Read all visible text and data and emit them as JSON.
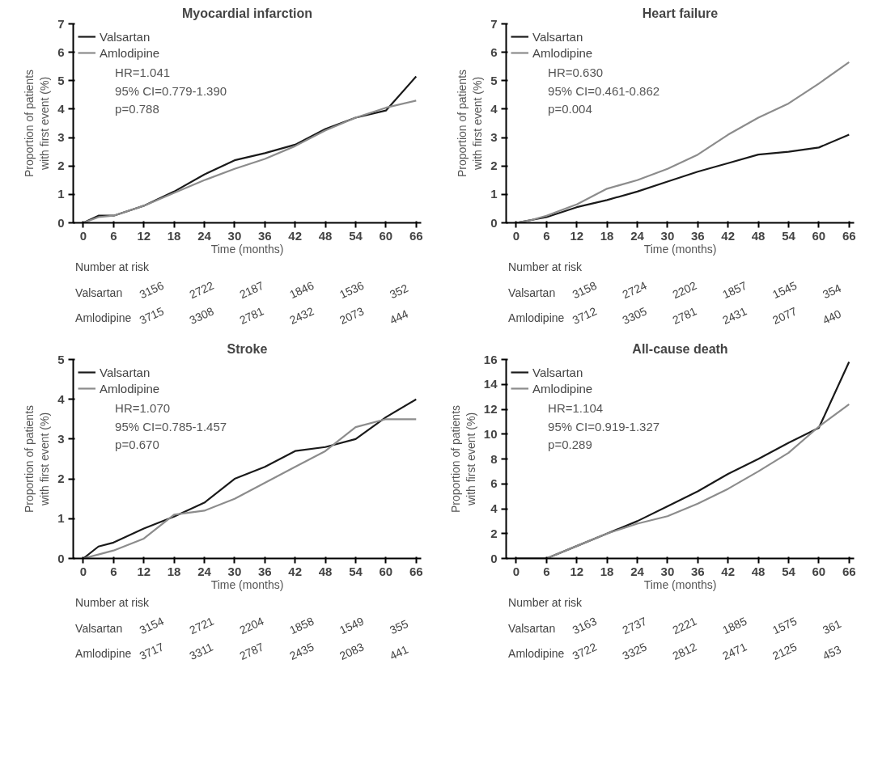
{
  "chart_data": [
    {
      "type": "line",
      "title": "Myocardial infarction",
      "xlabel": "Time (months)",
      "ylabel": "Proportion of patients\nwith first event (%)",
      "x": [
        0,
        3,
        6,
        12,
        18,
        24,
        30,
        36,
        42,
        48,
        54,
        60,
        66
      ],
      "xlim": [
        -2,
        67
      ],
      "ylim": [
        0,
        7
      ],
      "xticks": [
        0,
        6,
        12,
        18,
        24,
        30,
        36,
        42,
        48,
        54,
        60,
        66
      ],
      "yticks": [
        0,
        1,
        2,
        3,
        4,
        5,
        6,
        7
      ],
      "legend": "top left",
      "series": [
        {
          "name": "Valsartan",
          "color": "#1a1a1a",
          "values": [
            0,
            0.25,
            0.25,
            0.6,
            1.1,
            1.7,
            2.2,
            2.45,
            2.75,
            3.3,
            3.7,
            3.95,
            5.15
          ]
        },
        {
          "name": "Amlodipine",
          "color": "#8c8c8c",
          "values": [
            0,
            0.2,
            0.25,
            0.6,
            1.05,
            1.5,
            1.9,
            2.25,
            2.7,
            3.25,
            3.7,
            4.05,
            4.3
          ]
        }
      ],
      "annotations": [
        "HR=1.041",
        "95% CI=0.779-1.390",
        "p=0.788",
        "Number at risk",
        "Valsartan",
        "Amlodipine",
        "3156",
        "2722",
        "2187",
        "1846",
        "1536",
        "352",
        "3715",
        "3308",
        "2781",
        "2432",
        "2073",
        "444"
      ]
    },
    {
      "type": "line",
      "title": "Heart failure",
      "xlabel": "Time (months)",
      "ylabel": "Proportion of patients\nwith first event (%)",
      "x": [
        0,
        3,
        6,
        12,
        18,
        24,
        30,
        36,
        42,
        48,
        54,
        60,
        66
      ],
      "xlim": [
        -2,
        67
      ],
      "ylim": [
        0,
        7
      ],
      "xticks": [
        0,
        6,
        12,
        18,
        24,
        30,
        36,
        42,
        48,
        54,
        60,
        66
      ],
      "yticks": [
        0,
        1,
        2,
        3,
        4,
        5,
        6,
        7
      ],
      "legend": "top left",
      "series": [
        {
          "name": "Valsartan",
          "color": "#1a1a1a",
          "values": [
            0,
            0.1,
            0.2,
            0.55,
            0.8,
            1.1,
            1.45,
            1.8,
            2.1,
            2.4,
            2.5,
            2.65,
            3.1
          ]
        },
        {
          "name": "Amlodipine",
          "color": "#8c8c8c",
          "values": [
            0,
            0.1,
            0.25,
            0.65,
            1.2,
            1.5,
            1.9,
            2.4,
            3.1,
            3.7,
            4.2,
            4.9,
            5.65
          ]
        }
      ],
      "annotations": [
        "HR=0.630",
        "95% CI=0.461-0.862",
        "p=0.004",
        "Number at risk",
        "Valsartan",
        "Amlodipine",
        "3158",
        "2724",
        "2202",
        "1857",
        "1545",
        "354",
        "3712",
        "3305",
        "2781",
        "2431",
        "2077",
        "440"
      ]
    },
    {
      "type": "line",
      "title": "Stroke",
      "xlabel": "Time (months)",
      "ylabel": "Proportion of patients\nwith first event (%)",
      "x": [
        0,
        3,
        6,
        12,
        18,
        24,
        30,
        36,
        42,
        48,
        54,
        60,
        66
      ],
      "xlim": [
        -2,
        67
      ],
      "ylim": [
        0,
        5
      ],
      "xticks": [
        0,
        6,
        12,
        18,
        24,
        30,
        36,
        42,
        48,
        54,
        60,
        66
      ],
      "yticks": [
        0,
        1,
        2,
        3,
        4,
        5
      ],
      "legend": "top left",
      "series": [
        {
          "name": "Valsartan",
          "color": "#1a1a1a",
          "values": [
            0,
            0.3,
            0.4,
            0.75,
            1.05,
            1.4,
            2.0,
            2.3,
            2.7,
            2.8,
            3.0,
            3.55,
            4.0
          ]
        },
        {
          "name": "Amlodipine",
          "color": "#8c8c8c",
          "values": [
            0,
            0.1,
            0.2,
            0.5,
            1.1,
            1.2,
            1.5,
            1.9,
            2.3,
            2.7,
            3.3,
            3.5,
            3.5
          ]
        }
      ],
      "annotations": [
        "HR=1.070",
        "95% CI=0.785-1.457",
        "p=0.670",
        "Number at risk",
        "Valsartan",
        "Amlodipine",
        "3154",
        "2721",
        "2204",
        "1858",
        "1549",
        "355",
        "3717",
        "3311",
        "2787",
        "2435",
        "2083",
        "441"
      ]
    },
    {
      "type": "line",
      "title": "All-cause death",
      "xlabel": "Time (months)",
      "ylabel": "Proportion of patients\nwith first event (%)",
      "x": [
        0,
        6,
        12,
        18,
        24,
        30,
        36,
        42,
        48,
        54,
        60,
        66
      ],
      "xlim": [
        -2,
        67
      ],
      "ylim": [
        0,
        16
      ],
      "xticks": [
        0,
        6,
        12,
        18,
        24,
        30,
        36,
        42,
        48,
        54,
        60,
        66
      ],
      "yticks": [
        0,
        2,
        4,
        6,
        8,
        10,
        12,
        14,
        16
      ],
      "legend": "top left",
      "series": [
        {
          "name": "Valsartan",
          "color": "#1a1a1a",
          "values": [
            0,
            0,
            1.0,
            2.0,
            3.0,
            4.2,
            5.4,
            6.8,
            8.0,
            9.3,
            10.5,
            15.8
          ]
        },
        {
          "name": "Amlodipine",
          "color": "#8c8c8c",
          "values": [
            0,
            0,
            1.0,
            2.0,
            2.8,
            3.4,
            4.4,
            5.6,
            7.0,
            8.5,
            10.6,
            12.4
          ]
        }
      ],
      "annotations": [
        "HR=1.104",
        "95% CI=0.919-1.327",
        "p=0.289",
        "Number at risk",
        "Valsartan",
        "Amlodipine",
        "3163",
        "2737",
        "2221",
        "1885",
        "1575",
        "361",
        "3722",
        "3325",
        "2812",
        "2471",
        "2125",
        "453"
      ]
    }
  ]
}
